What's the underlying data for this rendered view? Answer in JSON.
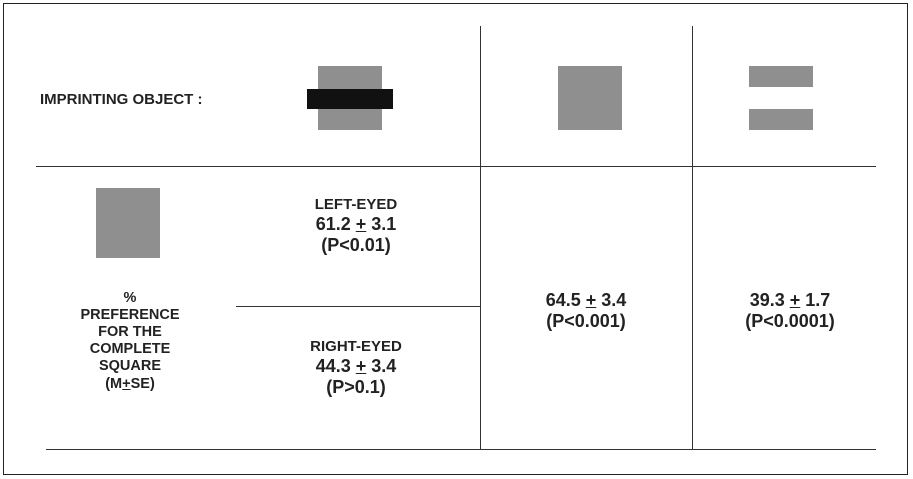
{
  "header": {
    "label": "IMPRINTING OBJECT :"
  },
  "stimuli": {
    "shape_gray_color": "#8f8f8f",
    "shape_bar_color": "#111111"
  },
  "row_label": {
    "percent": "%",
    "line1": "PREFERENCE",
    "line2": "FOR THE",
    "line3": "COMPLETE",
    "line4": "SQUARE",
    "m": "(M",
    "pm": "+",
    "se": "SE)"
  },
  "occluded": {
    "left_eyed": {
      "title": "LEFT-EYED",
      "mean": "61.2",
      "pm": "+",
      "se": "3.1",
      "p": "(P<0.01)"
    },
    "right_eyed": {
      "title": "RIGHT-EYED",
      "mean": "44.3",
      "pm": "+",
      "se": "3.4",
      "p": "(P>0.1)"
    }
  },
  "complete_square": {
    "mean": "64.5",
    "pm": "+",
    "se": "3.4",
    "p": "(P<0.001)"
  },
  "fragmented": {
    "mean": "39.3",
    "pm": "+",
    "se": "1.7",
    "p": "(P<0.0001)"
  }
}
